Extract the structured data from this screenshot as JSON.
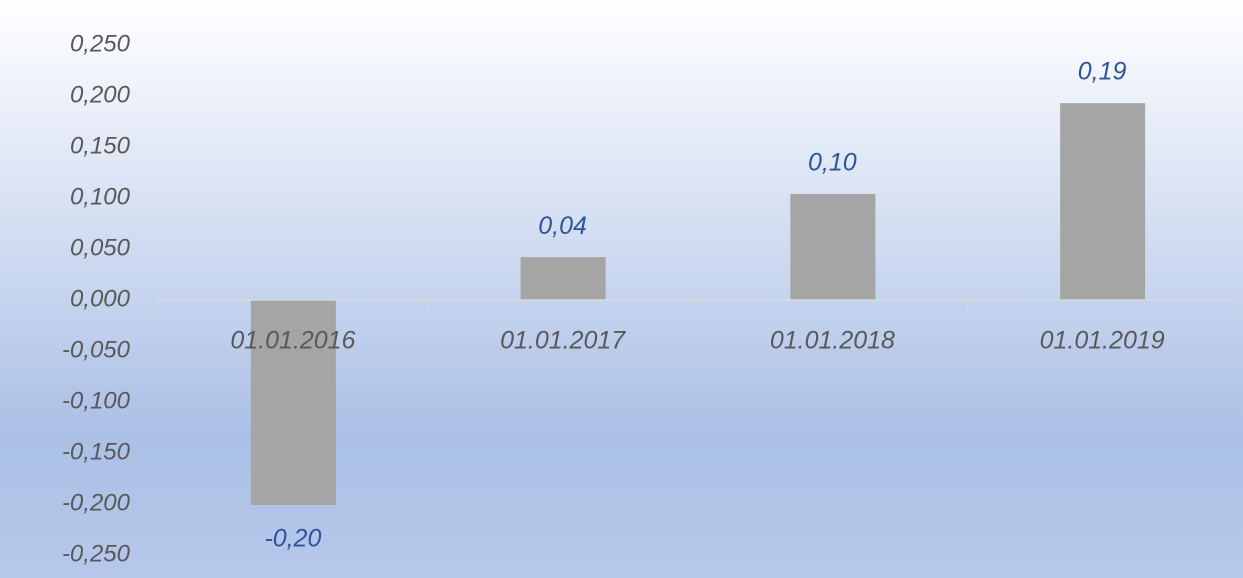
{
  "chart_data": {
    "type": "bar",
    "categories": [
      "01.01.2016",
      "01.01.2017",
      "01.01.2018",
      "01.01.2019"
    ],
    "values": [
      -0.201,
      0.042,
      0.104,
      0.193
    ],
    "value_labels": [
      "-0,20",
      "0,04",
      "0,10",
      "0,19"
    ],
    "color": "#a5a5a5",
    "ylim": [
      -0.25,
      0.25
    ],
    "yticks": [
      {
        "value": -0.25,
        "label": "-0,250"
      },
      {
        "value": -0.2,
        "label": "-0,200"
      },
      {
        "value": -0.15,
        "label": "-0,150"
      },
      {
        "value": -0.1,
        "label": "-0,100"
      },
      {
        "value": -0.05,
        "label": "-0,050"
      },
      {
        "value": 0,
        "label": "0,000"
      },
      {
        "value": 0.05,
        "label": "0,050"
      },
      {
        "value": 0.1,
        "label": "0,100"
      },
      {
        "value": 0.15,
        "label": "0,150"
      },
      {
        "value": 0.2,
        "label": "0,200"
      },
      {
        "value": 0.25,
        "label": "0,250"
      }
    ],
    "grid": false
  }
}
